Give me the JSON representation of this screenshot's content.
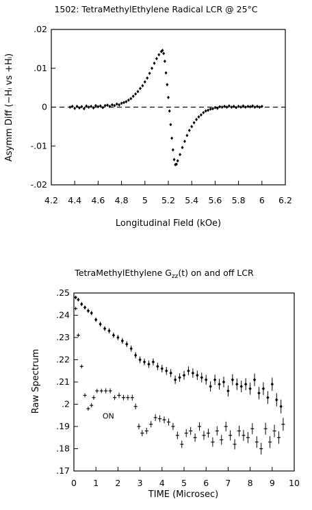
{
  "chart_data": [
    {
      "type": "scatter",
      "title": "1502: TetraMethylEthylene Radical LCR @ 25°C",
      "xlabel": "Longitudinal Field (kOe)",
      "ylabel": "Asymm Diff (−Hₗ vs +Hₗ)",
      "xlim": [
        4.2,
        6.2
      ],
      "ylim": [
        -0.02,
        0.02
      ],
      "x_ticks": [
        "4.2",
        "4.4",
        "4.6",
        "4.8",
        "5",
        "5.2",
        "5.4",
        "5.6",
        "5.8",
        "6",
        "6.2"
      ],
      "y_ticks": [
        ".02",
        ".01",
        "0",
        "-.01",
        "-.02"
      ],
      "reference_line": {
        "y": 0,
        "style": "dashed"
      },
      "series": [
        {
          "points": [
            [
              4.36,
              0.0
            ],
            [
              4.38,
              0.0002
            ],
            [
              4.4,
              -0.0003
            ],
            [
              4.42,
              0.0002
            ],
            [
              4.44,
              -0.0002
            ],
            [
              4.46,
              0.0001
            ],
            [
              4.48,
              -0.0004
            ],
            [
              4.5,
              0.0003
            ],
            [
              4.52,
              0.0
            ],
            [
              4.54,
              0.0002
            ],
            [
              4.56,
              -0.0002
            ],
            [
              4.58,
              0.0004
            ],
            [
              4.6,
              0.0001
            ],
            [
              4.62,
              0.0003
            ],
            [
              4.64,
              -0.0001
            ],
            [
              4.66,
              0.0004
            ],
            [
              4.68,
              0.0005
            ],
            [
              4.7,
              0.0002
            ],
            [
              4.72,
              0.0006
            ],
            [
              4.74,
              0.0004
            ],
            [
              4.76,
              0.0008
            ],
            [
              4.78,
              0.0006
            ],
            [
              4.8,
              0.001
            ],
            [
              4.82,
              0.0012
            ],
            [
              4.84,
              0.0014
            ],
            [
              4.86,
              0.0018
            ],
            [
              4.88,
              0.0022
            ],
            [
              4.9,
              0.0028
            ],
            [
              4.92,
              0.0034
            ],
            [
              4.94,
              0.004
            ],
            [
              4.96,
              0.0048
            ],
            [
              4.98,
              0.0055
            ],
            [
              5.0,
              0.0065
            ],
            [
              5.02,
              0.0075
            ],
            [
              5.04,
              0.0087
            ],
            [
              5.06,
              0.01
            ],
            [
              5.08,
              0.0113
            ],
            [
              5.1,
              0.0125
            ],
            [
              5.12,
              0.0135
            ],
            [
              5.14,
              0.0143
            ],
            [
              5.15,
              0.0146
            ],
            [
              5.16,
              0.0138
            ],
            [
              5.17,
              0.0118
            ],
            [
              5.18,
              0.0088
            ],
            [
              5.19,
              0.0058
            ],
            [
              5.2,
              0.0025
            ],
            [
              5.21,
              -0.001
            ],
            [
              5.22,
              -0.0045
            ],
            [
              5.23,
              -0.008
            ],
            [
              5.24,
              -0.011
            ],
            [
              5.25,
              -0.0135
            ],
            [
              5.26,
              -0.0148
            ],
            [
              5.27,
              -0.0147
            ],
            [
              5.28,
              -0.0138
            ],
            [
              5.3,
              -0.0122
            ],
            [
              5.32,
              -0.0104
            ],
            [
              5.34,
              -0.0088
            ],
            [
              5.36,
              -0.0073
            ],
            [
              5.38,
              -0.006
            ],
            [
              5.4,
              -0.005
            ],
            [
              5.42,
              -0.004
            ],
            [
              5.44,
              -0.0032
            ],
            [
              5.46,
              -0.0025
            ],
            [
              5.48,
              -0.002
            ],
            [
              5.5,
              -0.0014
            ],
            [
              5.52,
              -0.001
            ],
            [
              5.54,
              -0.0008
            ],
            [
              5.56,
              -0.0005
            ],
            [
              5.58,
              -0.0004
            ],
            [
              5.6,
              -0.0001
            ],
            [
              5.62,
              -0.0003
            ],
            [
              5.64,
              0.0001
            ],
            [
              5.66,
              0.0
            ],
            [
              5.68,
              0.0002
            ],
            [
              5.7,
              0.0
            ],
            [
              5.72,
              0.0003
            ],
            [
              5.74,
              0.0
            ],
            [
              5.76,
              0.0002
            ],
            [
              5.78,
              -0.0001
            ],
            [
              5.8,
              0.0002
            ],
            [
              5.82,
              0.0
            ],
            [
              5.84,
              0.0003
            ],
            [
              5.86,
              0.0
            ],
            [
              5.88,
              0.0002
            ],
            [
              5.9,
              0.0001
            ],
            [
              5.92,
              0.0003
            ],
            [
              5.94,
              0.0
            ],
            [
              5.96,
              0.0002
            ],
            [
              5.98,
              0.0
            ],
            [
              6.0,
              0.0002
            ]
          ]
        }
      ]
    },
    {
      "type": "scatter",
      "title": "TetraMethylEthylene G",
      "title_sub": "zz",
      "title_tail": "(t) on and off LCR",
      "xlabel": "TIME (Microsec)",
      "ylabel": "Raw Spectrum",
      "xlim": [
        0,
        10
      ],
      "ylim": [
        0.17,
        0.25
      ],
      "x_ticks": [
        "0",
        "1",
        "2",
        "3",
        "4",
        "5",
        "6",
        "7",
        "8",
        "9",
        "10"
      ],
      "y_ticks": [
        ".25",
        ".24",
        ".23",
        ".22",
        ".21",
        ".2",
        ".19",
        ".18",
        ".17"
      ],
      "annotations": [
        {
          "text": "ON",
          "x": 1.3,
          "y": 0.1935
        }
      ],
      "series": [
        {
          "marker": "diamond",
          "points": [
            [
              0.08,
              0.248,
              0.0008
            ],
            [
              0.2,
              0.247,
              0.0008
            ],
            [
              0.35,
              0.245,
              0.0009
            ],
            [
              0.5,
              0.2435,
              0.0009
            ],
            [
              0.65,
              0.242,
              0.001
            ],
            [
              0.8,
              0.241,
              0.001
            ],
            [
              1.0,
              0.238,
              0.001
            ],
            [
              1.2,
              0.236,
              0.0011
            ],
            [
              1.4,
              0.234,
              0.0011
            ],
            [
              1.6,
              0.233,
              0.0012
            ],
            [
              1.8,
              0.231,
              0.0012
            ],
            [
              2.0,
              0.23,
              0.0012
            ],
            [
              2.2,
              0.2285,
              0.0013
            ],
            [
              2.4,
              0.227,
              0.0013
            ],
            [
              2.6,
              0.225,
              0.0014
            ],
            [
              2.8,
              0.222,
              0.0014
            ],
            [
              3.0,
              0.22,
              0.0015
            ],
            [
              3.2,
              0.219,
              0.0015
            ],
            [
              3.4,
              0.218,
              0.0016
            ],
            [
              3.6,
              0.219,
              0.0016
            ],
            [
              3.8,
              0.217,
              0.0017
            ],
            [
              4.0,
              0.216,
              0.0017
            ],
            [
              4.2,
              0.215,
              0.0018
            ],
            [
              4.4,
              0.214,
              0.0018
            ],
            [
              4.6,
              0.211,
              0.0019
            ],
            [
              4.8,
              0.212,
              0.0019
            ],
            [
              5.0,
              0.213,
              0.002
            ],
            [
              5.2,
              0.215,
              0.002
            ],
            [
              5.4,
              0.214,
              0.0021
            ],
            [
              5.6,
              0.213,
              0.0021
            ],
            [
              5.8,
              0.212,
              0.0022
            ],
            [
              6.0,
              0.211,
              0.0022
            ],
            [
              6.2,
              0.208,
              0.0023
            ],
            [
              6.4,
              0.211,
              0.0023
            ],
            [
              6.6,
              0.209,
              0.0024
            ],
            [
              6.8,
              0.21,
              0.0024
            ],
            [
              7.0,
              0.206,
              0.0025
            ],
            [
              7.2,
              0.211,
              0.0025
            ],
            [
              7.4,
              0.209,
              0.0026
            ],
            [
              7.6,
              0.208,
              0.0026
            ],
            [
              7.8,
              0.209,
              0.0027
            ],
            [
              8.0,
              0.207,
              0.0027
            ],
            [
              8.2,
              0.211,
              0.0028
            ],
            [
              8.4,
              0.205,
              0.0028
            ],
            [
              8.6,
              0.207,
              0.0029
            ],
            [
              8.8,
              0.203,
              0.0029
            ],
            [
              9.0,
              0.209,
              0.003
            ],
            [
              9.2,
              0.202,
              0.003
            ],
            [
              9.4,
              0.199,
              0.0031
            ]
          ]
        },
        {
          "name": "ON",
          "marker": "plus",
          "points": [
            [
              0.08,
              0.243,
              0.0008
            ],
            [
              0.2,
              0.231,
              0.0008
            ],
            [
              0.35,
              0.217,
              0.0009
            ],
            [
              0.5,
              0.204,
              0.0009
            ],
            [
              0.65,
              0.198,
              0.0009
            ],
            [
              0.8,
              0.1995,
              0.001
            ],
            [
              0.9,
              0.203,
              0.001
            ],
            [
              1.05,
              0.206,
              0.001
            ],
            [
              1.25,
              0.206,
              0.001
            ],
            [
              1.45,
              0.206,
              0.0011
            ],
            [
              1.65,
              0.206,
              0.0011
            ],
            [
              1.85,
              0.203,
              0.0011
            ],
            [
              2.05,
              0.204,
              0.0012
            ],
            [
              2.25,
              0.203,
              0.0012
            ],
            [
              2.45,
              0.203,
              0.0012
            ],
            [
              2.65,
              0.203,
              0.0013
            ],
            [
              2.8,
              0.199,
              0.0013
            ],
            [
              2.95,
              0.19,
              0.0013
            ],
            [
              3.1,
              0.187,
              0.0014
            ],
            [
              3.3,
              0.188,
              0.0014
            ],
            [
              3.5,
              0.191,
              0.0014
            ],
            [
              3.7,
              0.194,
              0.0015
            ],
            [
              3.9,
              0.1935,
              0.0015
            ],
            [
              4.1,
              0.193,
              0.0015
            ],
            [
              4.3,
              0.192,
              0.0016
            ],
            [
              4.5,
              0.19,
              0.0016
            ],
            [
              4.7,
              0.186,
              0.0017
            ],
            [
              4.9,
              0.182,
              0.0017
            ],
            [
              5.1,
              0.187,
              0.0018
            ],
            [
              5.3,
              0.188,
              0.0018
            ],
            [
              5.5,
              0.185,
              0.0019
            ],
            [
              5.7,
              0.19,
              0.0019
            ],
            [
              5.9,
              0.186,
              0.002
            ],
            [
              6.1,
              0.187,
              0.002
            ],
            [
              6.3,
              0.183,
              0.0021
            ],
            [
              6.5,
              0.188,
              0.0021
            ],
            [
              6.7,
              0.184,
              0.0022
            ],
            [
              6.9,
              0.19,
              0.0022
            ],
            [
              7.1,
              0.186,
              0.0023
            ],
            [
              7.3,
              0.182,
              0.0023
            ],
            [
              7.5,
              0.188,
              0.0024
            ],
            [
              7.7,
              0.186,
              0.0024
            ],
            [
              7.9,
              0.185,
              0.0025
            ],
            [
              8.1,
              0.189,
              0.0025
            ],
            [
              8.3,
              0.183,
              0.0026
            ],
            [
              8.5,
              0.18,
              0.0026
            ],
            [
              8.7,
              0.189,
              0.0027
            ],
            [
              8.9,
              0.183,
              0.0027
            ],
            [
              9.1,
              0.188,
              0.0028
            ],
            [
              9.3,
              0.185,
              0.0028
            ],
            [
              9.5,
              0.191,
              0.0029
            ]
          ]
        }
      ]
    }
  ]
}
